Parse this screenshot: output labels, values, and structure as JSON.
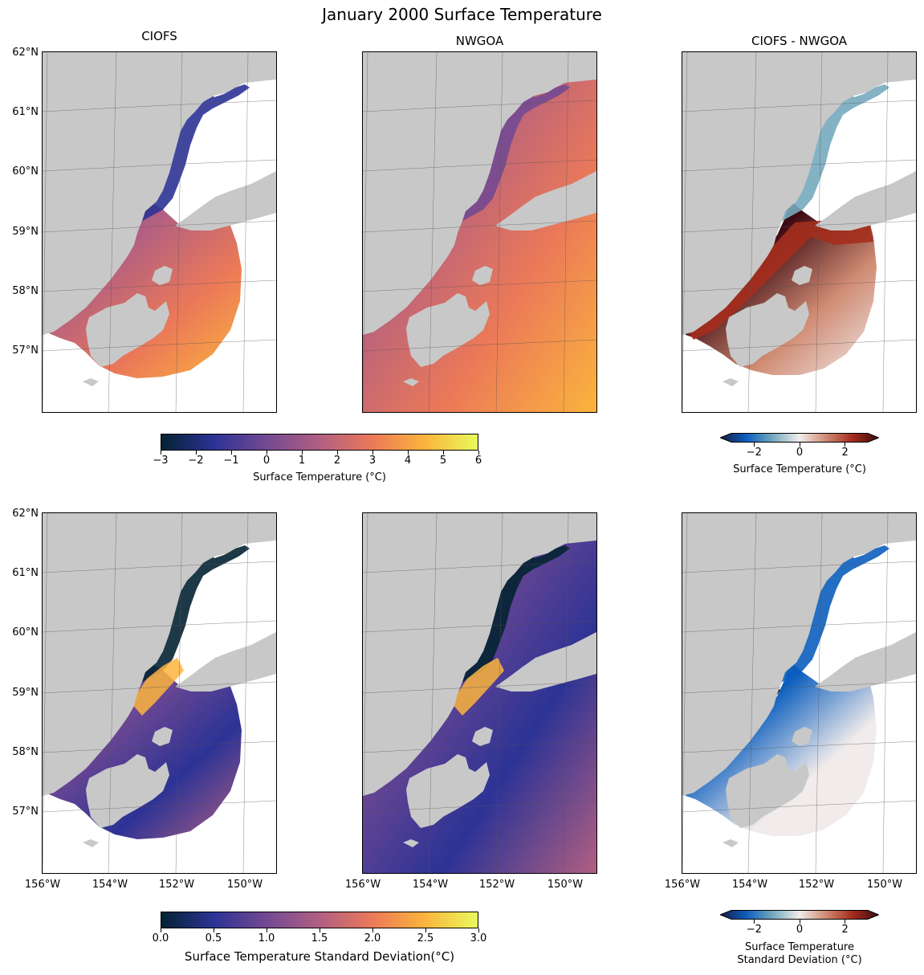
{
  "figure": {
    "title": "January 2000 Surface Temperature",
    "panel_titles": [
      "CIOFS",
      "NWGOA",
      "CIOFS - NWGOA"
    ]
  },
  "axes": {
    "lat_labels": [
      "62°N",
      "61°N",
      "60°N",
      "59°N",
      "58°N",
      "57°N"
    ],
    "lon_labels": [
      "156°W",
      "154°W",
      "152°W",
      "150°W"
    ]
  },
  "colorbars": {
    "temp": {
      "ticks": [
        "−3",
        "−2",
        "−1",
        "0",
        "1",
        "2",
        "3",
        "4",
        "5",
        "6"
      ],
      "label": "Surface Temperature (°C)"
    },
    "temp_diff": {
      "ticks": [
        "−2",
        "0",
        "2"
      ],
      "label": "Surface Temperature (°C)"
    },
    "std": {
      "ticks": [
        "0.0",
        "0.5",
        "1.0",
        "1.5",
        "2.0",
        "2.5",
        "3.0"
      ],
      "label": "Surface Temperature Standard Deviation(°C)"
    },
    "std_diff": {
      "ticks": [
        "−2",
        "0",
        "2"
      ],
      "label_line1": "Surface Temperature",
      "label_line2": "Standard Deviation (°C)"
    }
  },
  "colors": {
    "land": "#c8c8c8",
    "thermal": [
      "#042333",
      "#2c3395",
      "#744992",
      "#b15f82",
      "#eb7958",
      "#fbb43d",
      "#e8fa5b"
    ],
    "balance": [
      "#181c43",
      "#0c5ebe",
      "#75aabe",
      "#f1eceb",
      "#d08b73",
      "#a52d1d",
      "#3c0912"
    ]
  }
}
